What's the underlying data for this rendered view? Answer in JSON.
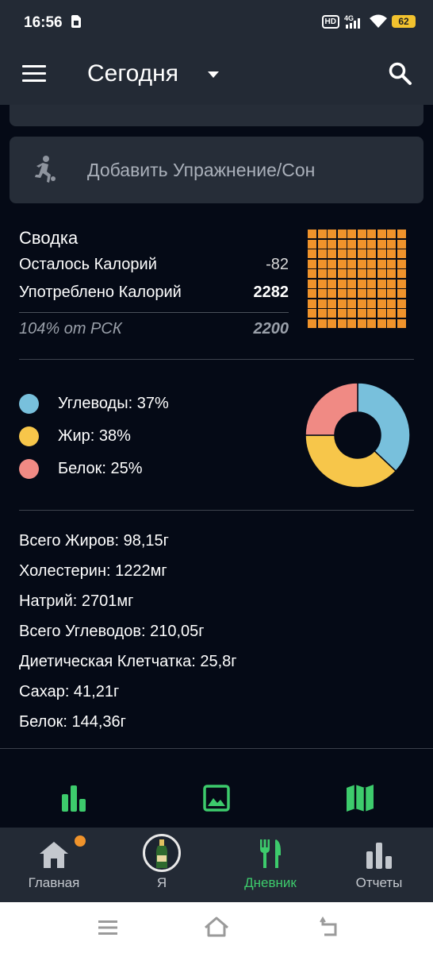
{
  "status_bar": {
    "time": "16:56",
    "hd": "HD",
    "network": "4G",
    "battery": "62"
  },
  "app_bar": {
    "title": "Сегодня",
    "menu_icon": "hamburger-menu-icon",
    "dropdown_icon": "caret-down-icon",
    "search_icon": "search-icon"
  },
  "exercise_card": {
    "label": "Добавить Упражнение/Сон",
    "icon": "running-person-icon"
  },
  "summary": {
    "title": "Сводка",
    "remaining_label": "Осталось Калорий",
    "remaining_value": "-82",
    "consumed_label": "Употреблено Калорий",
    "consumed_value": "2282",
    "rsk_label": "104% от РСК",
    "rsk_value": "2200",
    "grid_color": "#f0932b",
    "grid_filled_fraction": 1.0
  },
  "macros": {
    "items": [
      {
        "label": "Углеводы: 37%",
        "percent": 37,
        "color": "#78c0dc"
      },
      {
        "label": "Жир: 38%",
        "percent": 38,
        "color": "#f7c64a"
      },
      {
        "label": "Белок: 25%",
        "percent": 25,
        "color": "#f08a84"
      }
    ]
  },
  "nutrients": [
    "Всего Жиров: 98,15г",
    "Холестерин: 1222мг",
    "Натрий: 2701мг",
    "Всего Углеводов: 210,05г",
    "Диетическая Клетчатка: 25,8г",
    "Сахар: 41,21г",
    "Белок: 144,36г"
  ],
  "sub_actions": [
    "bar-chart-icon",
    "image-icon",
    "map-icon"
  ],
  "bottom_nav": {
    "items": [
      {
        "label": "Главная",
        "icon": "home-icon",
        "active": false,
        "badge": true
      },
      {
        "label": "Я",
        "icon": "avatar-bottle-icon",
        "active": false
      },
      {
        "label": "Дневник",
        "icon": "fork-knife-icon",
        "active": true
      },
      {
        "label": "Отчеты",
        "icon": "bar-chart-icon",
        "active": false
      }
    ]
  },
  "system_nav": [
    "recents-icon",
    "home-outline-icon",
    "back-icon"
  ],
  "colors": {
    "background": "#050a16",
    "surface": "#232a35",
    "accent_green": "#3dcb6c",
    "accent_orange": "#f0932b"
  }
}
